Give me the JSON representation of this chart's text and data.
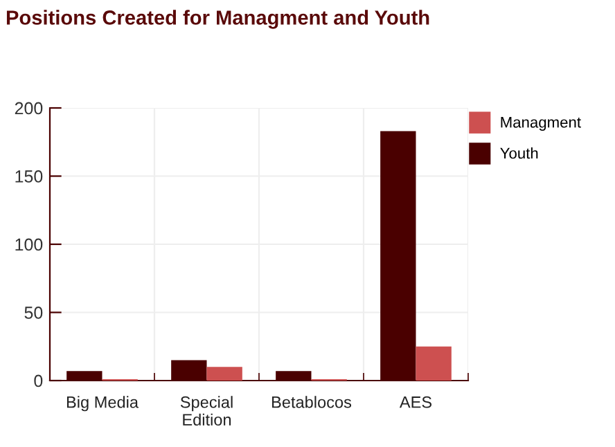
{
  "chart_data": {
    "type": "bar",
    "title": "Positions Created for Managment and Youth",
    "categories": [
      "Big Media",
      "Special\nEdition",
      "Betablocos",
      "AES"
    ],
    "series": [
      {
        "name": "Youth",
        "color": "#4a0000",
        "values": [
          7,
          15,
          7,
          183
        ]
      },
      {
        "name": "Managment",
        "color": "#cd5050",
        "values": [
          1,
          10,
          1,
          25
        ]
      }
    ],
    "ylim": [
      0,
      200
    ],
    "yticks": [
      0,
      50,
      100,
      150,
      200
    ],
    "grid": true,
    "legend": "top right"
  }
}
